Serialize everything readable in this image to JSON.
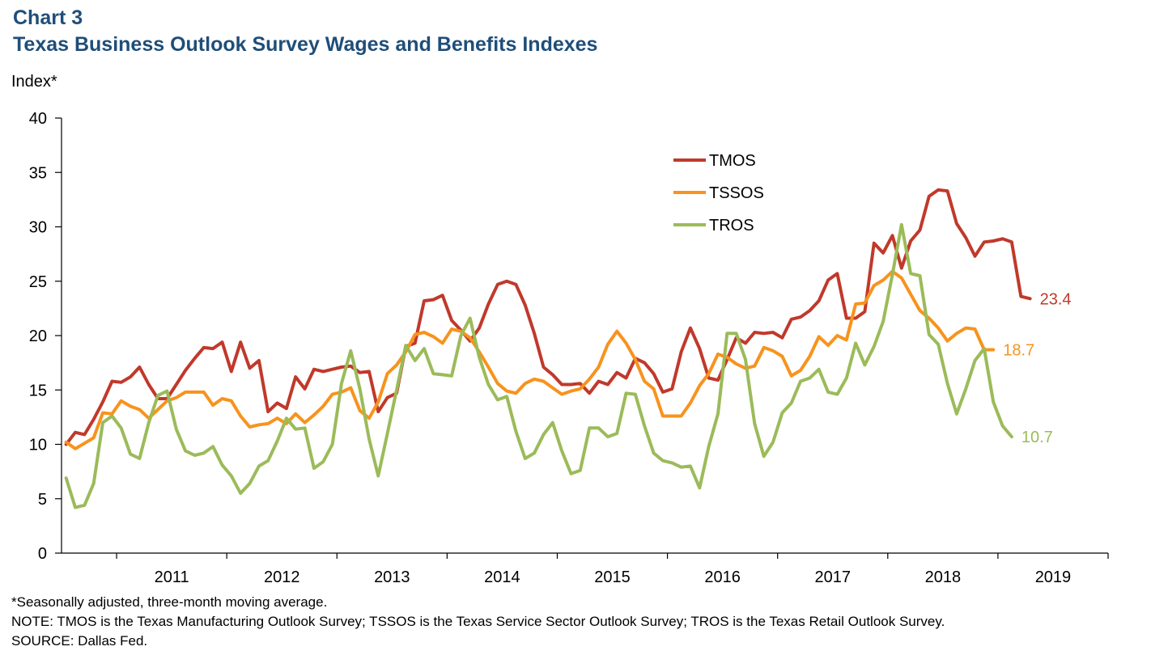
{
  "chart_label": "Chart 3",
  "chart_title": "Texas Business Outlook Survey Wages and Benefits Indexes",
  "footnotes": {
    "asterisk": "*Seasonally adjusted, three-month moving average.",
    "note": "NOTE: TMOS is the Texas Manufacturing Outlook Survey; TSSOS is the Texas Service Sector Outlook Survey; TROS is the Texas Retail Outlook Survey.",
    "source": "SOURCE: Dallas Fed."
  },
  "chart_data": {
    "type": "line",
    "ylabel": "Index*",
    "ylim": [
      0,
      40
    ],
    "yticks": [
      0,
      5,
      10,
      15,
      20,
      25,
      30,
      35,
      40
    ],
    "x_start": "2010-07",
    "x_end": "2019-05",
    "xticks": [
      "2011",
      "2012",
      "2013",
      "2014",
      "2015",
      "2016",
      "2017",
      "2018",
      "2019"
    ],
    "legend_position": "top-center",
    "series": [
      {
        "name": "TMOS",
        "color": "#c0392b",
        "end_label": "23.4",
        "values": [
          10.0,
          11.1,
          10.9,
          12.3,
          13.9,
          15.8,
          15.7,
          16.2,
          17.1,
          15.5,
          14.2,
          14.2,
          15.5,
          16.8,
          17.9,
          18.9,
          18.8,
          19.4,
          16.7,
          19.4,
          17.0,
          17.7,
          13.0,
          13.8,
          13.3,
          16.2,
          15.1,
          16.9,
          16.7,
          16.9,
          17.1,
          17.2,
          16.6,
          16.7,
          13.0,
          14.3,
          14.7,
          19.0,
          19.3,
          23.2,
          23.3,
          23.7,
          21.4,
          20.5,
          19.5,
          20.7,
          22.9,
          24.7,
          25.0,
          24.7,
          22.8,
          20.2,
          17.1,
          16.4,
          15.5,
          15.5,
          15.6,
          14.7,
          15.8,
          15.5,
          16.6,
          16.1,
          17.9,
          17.5,
          16.5,
          14.8,
          15.1,
          18.5,
          20.7,
          18.8,
          16.1,
          15.9,
          17.8,
          19.8,
          19.3,
          20.3,
          20.2,
          20.3,
          19.8,
          21.5,
          21.7,
          22.3,
          23.2,
          25.1,
          25.7,
          21.6,
          21.6,
          22.2,
          28.5,
          27.6,
          29.2,
          26.2,
          28.7,
          29.7,
          32.8,
          33.4,
          33.3,
          30.3,
          29.0,
          27.3,
          28.6,
          28.7,
          28.9,
          28.6,
          23.6,
          23.4
        ]
      },
      {
        "name": "TSSOS",
        "color": "#f7931e",
        "end_label": "18.7",
        "values": [
          10.2,
          9.6,
          10.1,
          10.6,
          12.9,
          12.8,
          14.0,
          13.5,
          13.2,
          12.4,
          13.2,
          14.0,
          14.3,
          14.8,
          14.8,
          14.8,
          13.6,
          14.2,
          14.0,
          12.6,
          11.6,
          11.8,
          11.9,
          12.4,
          11.9,
          12.8,
          12.0,
          12.7,
          13.5,
          14.6,
          14.8,
          15.2,
          13.1,
          12.4,
          13.9,
          16.5,
          17.3,
          18.5,
          20.1,
          20.3,
          19.9,
          19.3,
          20.6,
          20.4,
          19.8,
          18.5,
          17.1,
          15.6,
          14.9,
          14.7,
          15.6,
          16.0,
          15.8,
          15.2,
          14.6,
          14.9,
          15.1,
          16.0,
          17.1,
          19.2,
          20.4,
          19.3,
          17.8,
          15.8,
          15.1,
          12.6,
          12.6,
          12.6,
          13.8,
          15.4,
          16.5,
          18.3,
          18.0,
          17.4,
          17.0,
          17.2,
          18.9,
          18.6,
          18.1,
          16.3,
          16.8,
          18.1,
          19.9,
          19.1,
          20.0,
          19.6,
          22.9,
          23.0,
          24.6,
          25.1,
          25.9,
          25.3,
          23.8,
          22.3,
          21.6,
          20.7,
          19.5,
          20.2,
          20.7,
          20.6,
          18.7,
          18.7
        ]
      },
      {
        "name": "TROS",
        "color": "#9bbb59",
        "end_label": "10.7",
        "values": [
          6.9,
          4.2,
          4.4,
          6.4,
          12.0,
          12.6,
          11.5,
          9.1,
          8.7,
          12.0,
          14.5,
          14.9,
          11.4,
          9.4,
          9.0,
          9.2,
          9.8,
          8.1,
          7.1,
          5.5,
          6.4,
          8.0,
          8.5,
          10.3,
          12.4,
          11.4,
          11.5,
          7.8,
          8.4,
          10.0,
          15.6,
          18.6,
          15.1,
          10.5,
          7.1,
          11.0,
          15.0,
          19.1,
          17.7,
          18.8,
          16.5,
          16.4,
          16.3,
          20.0,
          21.6,
          18.0,
          15.5,
          14.1,
          14.4,
          11.2,
          8.7,
          9.2,
          10.9,
          12.0,
          9.4,
          7.3,
          7.6,
          11.5,
          11.5,
          10.7,
          11.0,
          14.7,
          14.6,
          11.7,
          9.2,
          8.5,
          8.3,
          7.9,
          8.0,
          6.0,
          9.8,
          12.8,
          20.2,
          20.2,
          17.8,
          11.9,
          8.9,
          10.2,
          12.9,
          13.8,
          15.8,
          16.1,
          16.9,
          14.8,
          14.6,
          16.1,
          19.3,
          17.3,
          19.0,
          21.3,
          25.6,
          30.2,
          25.7,
          25.5,
          20.1,
          19.2,
          15.6,
          12.8,
          15.1,
          17.7,
          18.8,
          13.9,
          11.7,
          10.7
        ]
      }
    ]
  }
}
